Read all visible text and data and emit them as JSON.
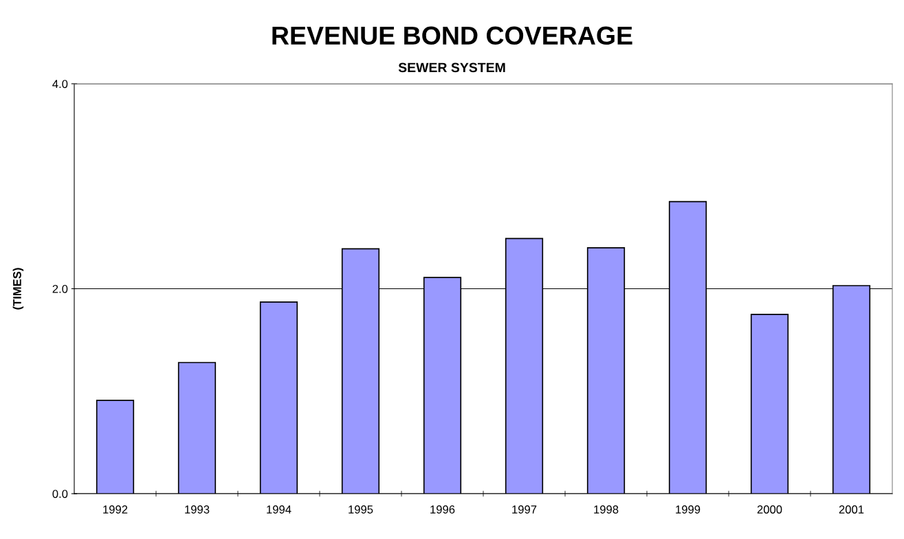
{
  "chart_data": {
    "type": "bar",
    "title": "REVENUE BOND COVERAGE",
    "subtitle": "SEWER SYSTEM",
    "ylabel": "(TIMES)",
    "categories": [
      "1992",
      "1993",
      "1994",
      "1995",
      "1996",
      "1997",
      "1998",
      "1999",
      "2000",
      "2001"
    ],
    "values": [
      0.91,
      1.28,
      1.87,
      2.39,
      2.11,
      2.49,
      2.4,
      2.85,
      1.75,
      2.03
    ],
    "color": "#9999ff",
    "ylim": [
      0,
      4
    ],
    "yticks": [
      {
        "value": 0,
        "label": "0.0"
      },
      {
        "value": 2,
        "label": "2.0"
      },
      {
        "value": 4,
        "label": "4.0"
      }
    ],
    "grid": "y"
  }
}
